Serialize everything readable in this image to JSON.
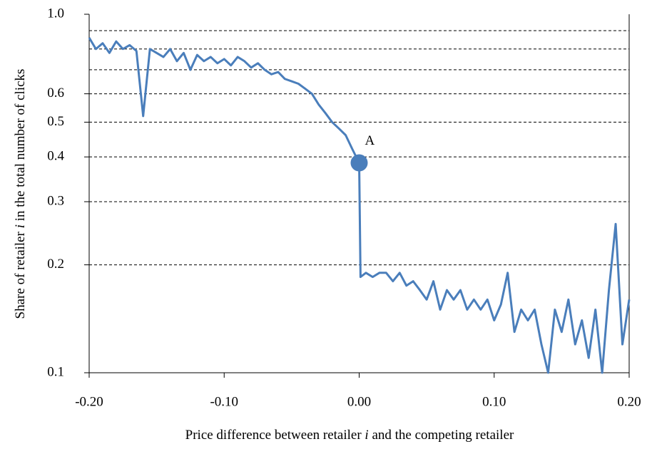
{
  "chart_data": {
    "type": "line",
    "xlabel": [
      {
        "text": "Price difference between retailer "
      },
      {
        "text": "i",
        "italic": true
      },
      {
        "text": " and the competing retailer"
      }
    ],
    "ylabel": [
      {
        "text": "Share of retailer "
      },
      {
        "text": "i",
        "italic": true
      },
      {
        "text": " in the total number of clicks"
      }
    ],
    "x": [
      -0.2,
      -0.195,
      -0.19,
      -0.185,
      -0.18,
      -0.175,
      -0.17,
      -0.165,
      -0.16,
      -0.155,
      -0.15,
      -0.145,
      -0.14,
      -0.135,
      -0.13,
      -0.125,
      -0.12,
      -0.115,
      -0.11,
      -0.105,
      -0.1,
      -0.095,
      -0.09,
      -0.085,
      -0.08,
      -0.075,
      -0.07,
      -0.065,
      -0.06,
      -0.055,
      -0.05,
      -0.045,
      -0.04,
      -0.035,
      -0.03,
      -0.025,
      -0.02,
      -0.015,
      -0.01,
      -0.005,
      0,
      0.001,
      0.005,
      0.01,
      0.015,
      0.02,
      0.025,
      0.03,
      0.035,
      0.04,
      0.045,
      0.05,
      0.055,
      0.06,
      0.065,
      0.07,
      0.075,
      0.08,
      0.085,
      0.09,
      0.095,
      0.1,
      0.105,
      0.11,
      0.115,
      0.12,
      0.125,
      0.13,
      0.135,
      0.14,
      0.145,
      0.15,
      0.155,
      0.16,
      0.165,
      0.17,
      0.175,
      0.18,
      0.185,
      0.19,
      0.195,
      0.2
    ],
    "series": [
      {
        "color": "#4a7ebb",
        "values": [
          0.86,
          0.8,
          0.83,
          0.78,
          0.84,
          0.8,
          0.82,
          0.79,
          0.52,
          0.8,
          0.78,
          0.76,
          0.8,
          0.74,
          0.78,
          0.7,
          0.77,
          0.74,
          0.76,
          0.73,
          0.75,
          0.72,
          0.76,
          0.74,
          0.71,
          0.73,
          0.7,
          0.68,
          0.69,
          0.66,
          0.65,
          0.64,
          0.62,
          0.6,
          0.56,
          0.53,
          0.5,
          0.48,
          0.46,
          0.42,
          0.385,
          0.185,
          0.19,
          0.185,
          0.19,
          0.19,
          0.18,
          0.19,
          0.175,
          0.18,
          0.17,
          0.16,
          0.18,
          0.15,
          0.17,
          0.16,
          0.17,
          0.15,
          0.16,
          0.15,
          0.16,
          0.14,
          0.155,
          0.19,
          0.13,
          0.15,
          0.14,
          0.15,
          0.12,
          0.1,
          0.15,
          0.13,
          0.16,
          0.12,
          0.14,
          0.11,
          0.15,
          0.1,
          0.17,
          0.26,
          0.12,
          0.16
        ]
      }
    ],
    "annotations": [
      {
        "text": "A",
        "x": 0,
        "y": 0.385
      }
    ],
    "xlim": [
      -0.2,
      0.2
    ],
    "xticks": [
      {
        "value": -0.2,
        "label": "-0.20"
      },
      {
        "value": -0.1,
        "label": "-0.10"
      },
      {
        "value": 0,
        "label": "0.00"
      },
      {
        "value": 0.1,
        "label": "0.10"
      },
      {
        "value": 0.2,
        "label": "0.20"
      }
    ],
    "ylim": [
      0.1,
      1
    ],
    "yticks": [
      0.1,
      0.2,
      0.3,
      0.4,
      0.5,
      0.6,
      {
        "value": 1,
        "label": "1.0"
      }
    ],
    "minor_gridlines": [
      0.7,
      0.8,
      0.9
    ],
    "log_y": true,
    "grid": true
  }
}
